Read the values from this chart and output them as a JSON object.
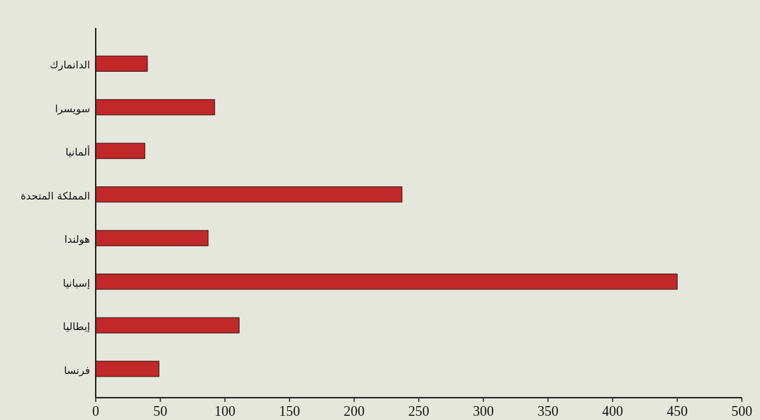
{
  "chart_data": {
    "type": "bar",
    "orientation": "horizontal",
    "categories": [
      "الدانمارك",
      "سويسرا",
      "ألمانيا",
      "المملكة المتحدة",
      "هولندا",
      "إسبانيا",
      "إيطاليا",
      "فرنسا"
    ],
    "values": [
      40,
      92,
      38,
      237,
      87,
      450,
      111,
      49
    ],
    "color": "#c0282a",
    "xlim": [
      0,
      500
    ],
    "xticks": [
      0,
      50,
      100,
      150,
      200,
      250,
      300,
      350,
      400,
      450,
      500
    ]
  }
}
